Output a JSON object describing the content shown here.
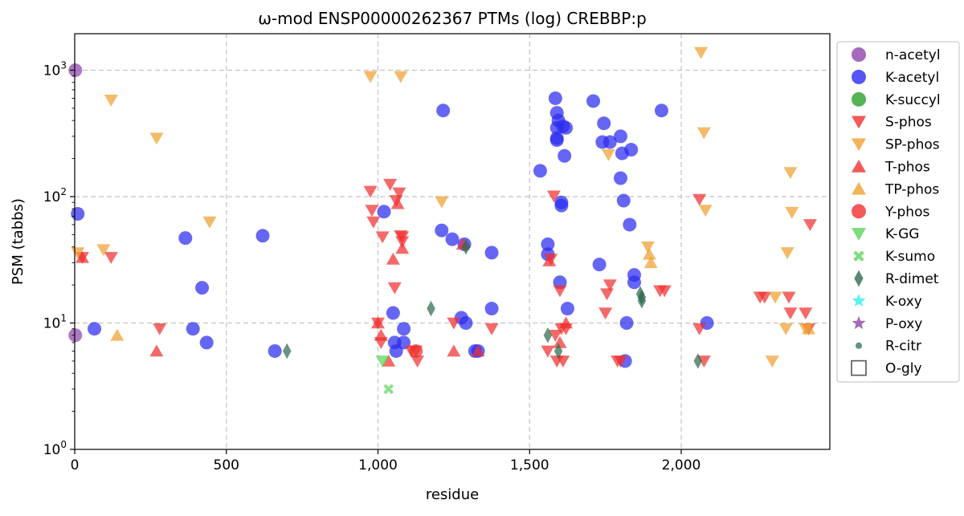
{
  "chart_data": {
    "type": "scatter",
    "title": "ω-mod ENSP00000262367 PTMs (log) CREBBP:p",
    "xlabel": "residue",
    "ylabel": "PSM (tabbs)",
    "xlim": [
      0,
      2500
    ],
    "ylim": [
      1,
      2000
    ],
    "yscale": "log",
    "grid": true,
    "legend_position": "right-outside",
    "x_ticks": [
      "0",
      "500",
      "1,000",
      "1,500",
      "2,000"
    ],
    "x_tick_values": [
      0,
      500,
      1000,
      1500,
      2000
    ],
    "y_ticks": [
      "10^0",
      "10^1",
      "10^2",
      "10^3"
    ],
    "y_tick_values": [
      1,
      10,
      100,
      1000
    ],
    "series": [
      {
        "name": "n-acetyl",
        "marker": "circle",
        "color": "#8e44ad",
        "points": [
          [
            2,
            1000
          ],
          [
            2,
            8
          ]
        ]
      },
      {
        "name": "K-acetyl",
        "marker": "circle",
        "color": "#2b2bf0",
        "points": [
          [
            10,
            73
          ],
          [
            65,
            9
          ],
          [
            365,
            47
          ],
          [
            390,
            9
          ],
          [
            420,
            19
          ],
          [
            435,
            7
          ],
          [
            620,
            49
          ],
          [
            660,
            6
          ],
          [
            1020,
            76
          ],
          [
            1050,
            12
          ],
          [
            1055,
            7
          ],
          [
            1060,
            6
          ],
          [
            1085,
            9
          ],
          [
            1085,
            7
          ],
          [
            1210,
            54
          ],
          [
            1215,
            480
          ],
          [
            1245,
            46
          ],
          [
            1275,
            11
          ],
          [
            1285,
            42
          ],
          [
            1290,
            10
          ],
          [
            1320,
            6
          ],
          [
            1330,
            6
          ],
          [
            1375,
            36
          ],
          [
            1375,
            13
          ],
          [
            1535,
            160
          ],
          [
            1560,
            42
          ],
          [
            1560,
            35
          ],
          [
            1585,
            600
          ],
          [
            1590,
            460
          ],
          [
            1590,
            350
          ],
          [
            1590,
            290
          ],
          [
            1590,
            280
          ],
          [
            1595,
            400
          ],
          [
            1600,
            21
          ],
          [
            1605,
            90
          ],
          [
            1605,
            85
          ],
          [
            1610,
            360
          ],
          [
            1615,
            210
          ],
          [
            1620,
            350
          ],
          [
            1625,
            13
          ],
          [
            1710,
            570
          ],
          [
            1730,
            29
          ],
          [
            1740,
            270
          ],
          [
            1745,
            380
          ],
          [
            1765,
            270
          ],
          [
            1800,
            300
          ],
          [
            1800,
            140
          ],
          [
            1805,
            220
          ],
          [
            1810,
            93
          ],
          [
            1815,
            5
          ],
          [
            1820,
            10
          ],
          [
            1830,
            60
          ],
          [
            1835,
            235
          ],
          [
            1845,
            24
          ],
          [
            1845,
            21
          ],
          [
            1935,
            480
          ],
          [
            2085,
            10
          ]
        ]
      },
      {
        "name": "K-succyl",
        "marker": "circle",
        "color": "#2ca02c",
        "points": []
      },
      {
        "name": "S-phos",
        "marker": "triangle-down",
        "color": "#f03030",
        "points": [
          [
            25,
            33
          ],
          [
            120,
            33
          ],
          [
            280,
            9
          ],
          [
            975,
            110
          ],
          [
            980,
            78
          ],
          [
            985,
            63
          ],
          [
            1000,
            10
          ],
          [
            1010,
            7
          ],
          [
            1015,
            48
          ],
          [
            1040,
            125
          ],
          [
            1055,
            19
          ],
          [
            1060,
            93
          ],
          [
            1070,
            107
          ],
          [
            1075,
            49
          ],
          [
            1080,
            48
          ],
          [
            1080,
            44
          ],
          [
            1110,
            6
          ],
          [
            1125,
            6
          ],
          [
            1130,
            5
          ],
          [
            1250,
            10
          ],
          [
            1375,
            9
          ],
          [
            1560,
            6
          ],
          [
            1570,
            32
          ],
          [
            1580,
            101
          ],
          [
            1585,
            8
          ],
          [
            1590,
            5
          ],
          [
            1600,
            18
          ],
          [
            1605,
            9
          ],
          [
            1610,
            5
          ],
          [
            1620,
            9
          ],
          [
            1750,
            12
          ],
          [
            1755,
            17
          ],
          [
            1765,
            20
          ],
          [
            1790,
            5
          ],
          [
            1800,
            5
          ],
          [
            1930,
            18
          ],
          [
            1945,
            18
          ],
          [
            2060,
            95
          ],
          [
            2060,
            9
          ],
          [
            2075,
            5
          ],
          [
            2260,
            16
          ],
          [
            2275,
            16
          ],
          [
            2355,
            16
          ],
          [
            2360,
            12
          ],
          [
            2410,
            12
          ],
          [
            2420,
            9
          ],
          [
            2425,
            60
          ]
        ]
      },
      {
        "name": "SP-phos",
        "marker": "triangle-down",
        "color": "#f0a030",
        "points": [
          [
            10,
            36
          ],
          [
            95,
            38
          ],
          [
            120,
            580
          ],
          [
            270,
            290
          ],
          [
            445,
            63
          ],
          [
            975,
            890
          ],
          [
            1075,
            890
          ],
          [
            1210,
            91
          ],
          [
            1760,
            215
          ],
          [
            1890,
            40
          ],
          [
            2065,
            1380
          ],
          [
            2075,
            320
          ],
          [
            2080,
            78
          ],
          [
            2300,
            5
          ],
          [
            2310,
            16
          ],
          [
            2345,
            9
          ],
          [
            2350,
            36
          ],
          [
            2360,
            155
          ],
          [
            2365,
            75
          ],
          [
            2410,
            9
          ]
        ]
      },
      {
        "name": "T-phos",
        "marker": "triangle-up",
        "color": "#f03030",
        "points": [
          [
            25,
            33
          ],
          [
            270,
            6
          ],
          [
            1000,
            10
          ],
          [
            1010,
            8
          ],
          [
            1035,
            5
          ],
          [
            1050,
            32
          ],
          [
            1065,
            88
          ],
          [
            1080,
            39
          ],
          [
            1250,
            6
          ],
          [
            1280,
            42
          ],
          [
            1330,
            6
          ],
          [
            1565,
            31
          ],
          [
            1600,
            7
          ],
          [
            1620,
            10
          ]
        ]
      },
      {
        "name": "TP-phos",
        "marker": "triangle-up",
        "color": "#f0a030",
        "points": [
          [
            140,
            8
          ],
          [
            1895,
            35
          ],
          [
            1900,
            30
          ],
          [
            2420,
            9
          ]
        ]
      },
      {
        "name": "Y-phos",
        "marker": "circle",
        "color": "#f03030",
        "points": [
          [
            1125,
            6
          ]
        ]
      },
      {
        "name": "K-GG",
        "marker": "triangle-down",
        "color": "#5ad65a",
        "points": [
          [
            1015,
            5
          ]
        ]
      },
      {
        "name": "K-sumo",
        "marker": "x",
        "color": "#5ad65a",
        "points": [
          [
            1035,
            3
          ]
        ]
      },
      {
        "name": "R-dimet",
        "marker": "diamond",
        "color": "#2e6b4f",
        "points": [
          [
            700,
            6
          ],
          [
            1175,
            13
          ],
          [
            1290,
            40
          ],
          [
            1560,
            8
          ],
          [
            1595,
            6
          ],
          [
            1865,
            17
          ],
          [
            1870,
            16
          ],
          [
            1870,
            15
          ],
          [
            2055,
            5
          ]
        ]
      },
      {
        "name": "K-oxy",
        "marker": "star",
        "color": "#33eeee",
        "points": []
      },
      {
        "name": "P-oxy",
        "marker": "star",
        "color": "#8e44ad",
        "points": []
      },
      {
        "name": "R-citr",
        "marker": "small-circle",
        "color": "#3a7a60",
        "points": []
      },
      {
        "name": "O-gly",
        "marker": "square-open",
        "color": "#555555",
        "points": []
      }
    ]
  }
}
